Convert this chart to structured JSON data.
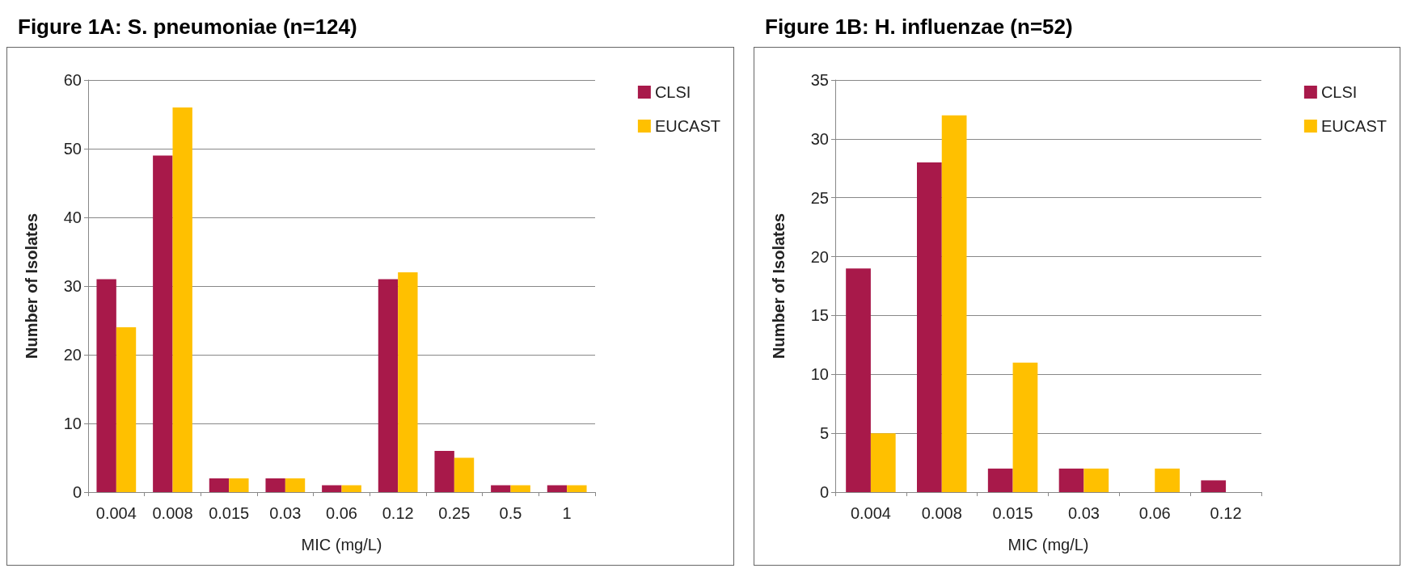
{
  "chart_data": [
    {
      "type": "bar",
      "title": "Figure 1A: S. pneumoniae (n=124)",
      "xlabel": "MIC (mg/L)",
      "ylabel": "Number of Isolates",
      "categories": [
        "0.004",
        "0.008",
        "0.015",
        "0.03",
        "0.06",
        "0.12",
        "0.25",
        "0.5",
        "1"
      ],
      "series": [
        {
          "name": "CLSI",
          "color": "#a8194a",
          "values": [
            31,
            49,
            2,
            2,
            1,
            31,
            6,
            1,
            1
          ]
        },
        {
          "name": "EUCAST",
          "color": "#ffc000",
          "values": [
            24,
            56,
            2,
            2,
            1,
            32,
            5,
            1,
            1
          ]
        }
      ],
      "ylim": [
        0,
        60
      ],
      "yticks": [
        0,
        10,
        20,
        30,
        40,
        50,
        60
      ],
      "grid": "y",
      "legend": "top right"
    },
    {
      "type": "bar",
      "title": "Figure 1B: H. influenzae (n=52)",
      "xlabel": "MIC (mg/L)",
      "ylabel": "Number of Isolates",
      "categories": [
        "0.004",
        "0.008",
        "0.015",
        "0.03",
        "0.06",
        "0.12"
      ],
      "series": [
        {
          "name": "CLSI",
          "color": "#a8194a",
          "values": [
            19,
            28,
            2,
            2,
            0,
            1
          ]
        },
        {
          "name": "EUCAST",
          "color": "#ffc000",
          "values": [
            5,
            32,
            11,
            2,
            2,
            0
          ]
        }
      ],
      "ylim": [
        0,
        35
      ],
      "yticks": [
        0,
        5,
        10,
        15,
        20,
        25,
        30,
        35
      ],
      "grid": "y",
      "legend": "top right"
    }
  ]
}
